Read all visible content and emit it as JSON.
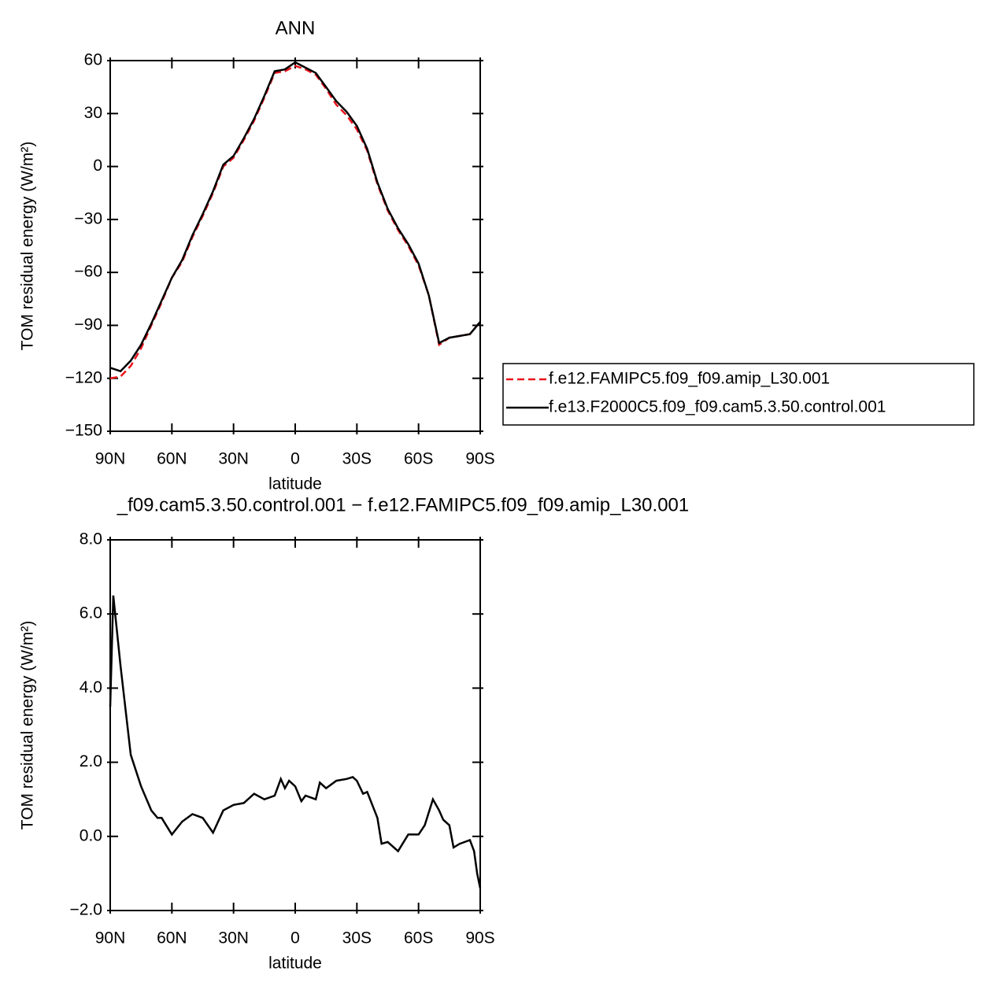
{
  "chart_data": [
    {
      "type": "line",
      "title": "ANN",
      "xlabel": "latitude",
      "ylabel": "TOM residual energy (W/m²)",
      "x": [
        90,
        85,
        80,
        75,
        70,
        65,
        60,
        55,
        50,
        45,
        40,
        35,
        30,
        25,
        20,
        15,
        10,
        5,
        0,
        -5,
        -10,
        -15,
        -20,
        -25,
        -30,
        -35,
        -40,
        -45,
        -50,
        -55,
        -60,
        -65,
        -70,
        -75,
        -80,
        -85,
        -90
      ],
      "series": [
        {
          "name": "f.e12.FAMIPC5.f09_f09.amip_L30.001",
          "color": "#e8141b",
          "dash": true,
          "values": [
            -120,
            -119,
            -113,
            -103,
            -90,
            -77,
            -63,
            -54,
            -40,
            -28,
            -15,
            0,
            5,
            15,
            26,
            39,
            53,
            54,
            57,
            55,
            52,
            44,
            35,
            29,
            21,
            9,
            -10,
            -25,
            -36,
            -45,
            -56,
            -73,
            -101,
            -97,
            -96,
            -95,
            -88
          ]
        },
        {
          "name": "f.e13.F2000C5.f09_f09.cam5.3.50.control.001",
          "color": "#000000",
          "dash": false,
          "values": [
            -114,
            -116,
            -110,
            -101,
            -89,
            -76,
            -63,
            -53,
            -39,
            -27,
            -14,
            1,
            6,
            16,
            27,
            40,
            54,
            55,
            59,
            56,
            53,
            45,
            37,
            31,
            23,
            10,
            -9,
            -24,
            -35,
            -44,
            -55,
            -73,
            -100,
            -97,
            -96,
            -95,
            -88
          ]
        }
      ],
      "xlim": [
        90,
        -90
      ],
      "xticks": [
        {
          "value": 90,
          "label": "90N"
        },
        {
          "value": 60,
          "label": "60N"
        },
        {
          "value": 30,
          "label": "30N"
        },
        0,
        {
          "value": -30,
          "label": "30S"
        },
        {
          "value": -60,
          "label": "60S"
        },
        {
          "value": -90,
          "label": "90S"
        }
      ],
      "ylim": [
        -150,
        60
      ],
      "yticks": [
        {
          "value": -150,
          "label": "−150"
        },
        {
          "value": -120,
          "label": "−120"
        },
        {
          "value": -90,
          "label": "−90"
        },
        {
          "value": -60,
          "label": "−60"
        },
        {
          "value": -30,
          "label": "−30"
        },
        0,
        30,
        60
      ],
      "legend": "right"
    },
    {
      "type": "line",
      "title": "_f09.cam5.3.50.control.001  −  f.e12.FAMIPC5.f09_f09.amip_L30.001",
      "xlabel": "latitude",
      "ylabel": "TOM residual energy (W/m²)",
      "x": [
        90,
        88.5,
        85,
        80,
        75,
        70,
        67,
        65,
        60,
        55,
        50,
        45,
        40,
        35,
        30,
        25,
        20,
        15,
        10,
        7,
        5,
        3,
        0,
        -3,
        -5,
        -10,
        -12,
        -15,
        -20,
        -25,
        -28,
        -30,
        -33,
        -35,
        -40,
        -42,
        -45,
        -50,
        -55,
        -60,
        -63,
        -67,
        -70,
        -72,
        -75,
        -77,
        -80,
        -85,
        -87,
        -88.5,
        -90
      ],
      "values": [
        3.5,
        6.5,
        4.6,
        2.2,
        1.35,
        0.7,
        0.5,
        0.5,
        0.05,
        0.4,
        0.6,
        0.5,
        0.1,
        0.7,
        0.85,
        0.9,
        1.15,
        1.0,
        1.1,
        1.55,
        1.3,
        1.5,
        1.35,
        0.95,
        1.1,
        1.0,
        1.45,
        1.3,
        1.5,
        1.55,
        1.6,
        1.5,
        1.15,
        1.2,
        0.5,
        -0.2,
        -0.15,
        -0.4,
        0.05,
        0.05,
        0.3,
        1.0,
        0.7,
        0.45,
        0.3,
        -0.3,
        -0.2,
        -0.1,
        -0.4,
        -1.0,
        -1.4
      ],
      "color": "#000000",
      "xlim": [
        90,
        -90
      ],
      "xticks": [
        {
          "value": 90,
          "label": "90N"
        },
        {
          "value": 60,
          "label": "60N"
        },
        {
          "value": 30,
          "label": "30N"
        },
        0,
        {
          "value": -30,
          "label": "30S"
        },
        {
          "value": -60,
          "label": "60S"
        },
        {
          "value": -90,
          "label": "90S"
        }
      ],
      "ylim": [
        -2,
        8
      ],
      "yticks": [
        {
          "value": -2,
          "label": "−2.0"
        },
        {
          "value": 0,
          "label": "0.0"
        },
        {
          "value": 2,
          "label": "2.0"
        },
        {
          "value": 4,
          "label": "4.0"
        },
        {
          "value": 6,
          "label": "6.0"
        },
        {
          "value": 8,
          "label": "8.0"
        }
      ]
    }
  ]
}
